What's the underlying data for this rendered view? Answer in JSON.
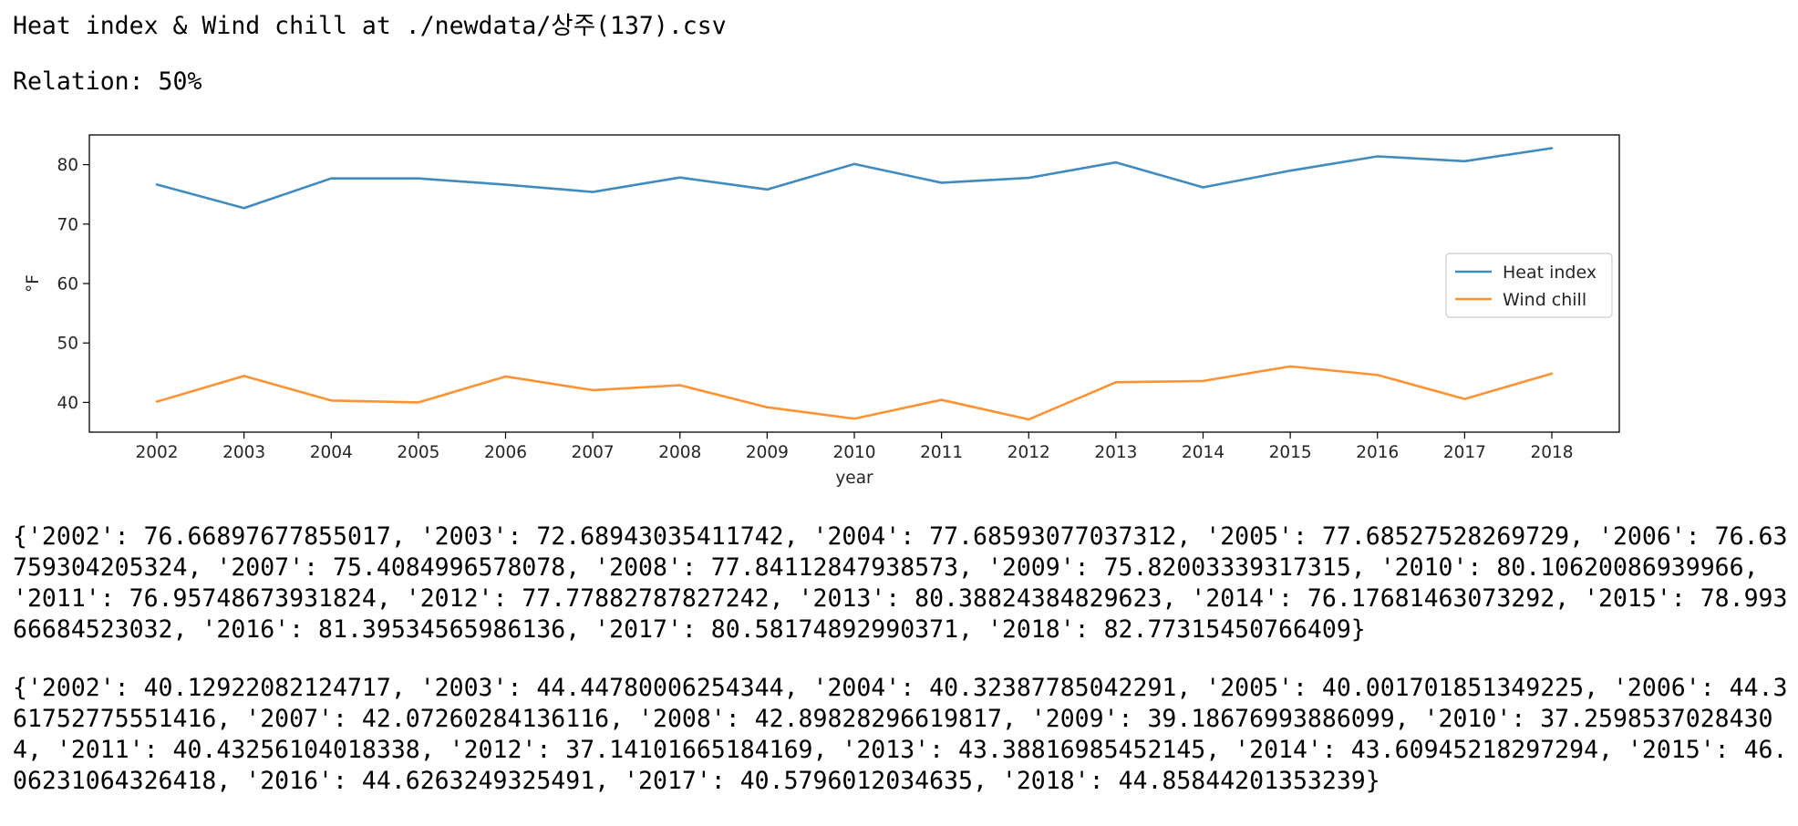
{
  "header": {
    "title": "Heat index & Wind chill at ./newdata/상주(137).csv",
    "relation": "Relation: 50%"
  },
  "chart_data": {
    "type": "line",
    "categories": [
      "2002",
      "2003",
      "2004",
      "2005",
      "2006",
      "2007",
      "2008",
      "2009",
      "2010",
      "2011",
      "2012",
      "2013",
      "2014",
      "2015",
      "2016",
      "2017",
      "2018"
    ],
    "series": [
      {
        "name": "Heat index",
        "color": "#1f77b4",
        "values": [
          76.66897677855017,
          72.68943035411742,
          77.68593077037312,
          77.68527528269729,
          76.63759304205324,
          75.4084996578078,
          77.84112847938573,
          75.82003339317315,
          80.10620086939966,
          76.95748673931824,
          77.77882787827242,
          80.38824384829623,
          76.17681463073292,
          78.99366684523032,
          81.39534565986136,
          80.58174892990371,
          82.77315450766409
        ]
      },
      {
        "name": "Wind chill",
        "color": "#ff7f0e",
        "values": [
          40.12922082124717,
          44.44780006254344,
          40.32387785042291,
          40.001701851349225,
          44.361752775551416,
          42.07260284136116,
          42.89828296619817,
          39.18676993886099,
          37.25985370284304,
          40.43256104018338,
          37.14101665184169,
          43.38816985452145,
          43.60945218297294,
          46.06231064326418,
          44.6263249325491,
          40.5796012034635,
          44.85844201353239
        ]
      }
    ],
    "xlabel": "year",
    "ylabel": "°F",
    "yticks": [
      "40",
      "50",
      "60",
      "70",
      "80"
    ],
    "ylim": [
      35,
      85
    ],
    "grid": false,
    "legend": "center-right"
  },
  "output": {
    "heat_dict": "{'2002': 76.66897677855017, '2003': 72.68943035411742, '2004': 77.68593077037312, '2005': 77.68527528269729, '2006': 76.63759304205324, '2007': 75.4084996578078, '2008': 77.84112847938573, '2009': 75.82003339317315, '2010': 80.10620086939966, '2011': 76.95748673931824, '2012': 77.77882787827242, '2013': 80.38824384829623, '2014': 76.17681463073292, '2015': 78.99366684523032, '2016': 81.39534565986136, '2017': 80.58174892990371, '2018': 82.77315450766409}",
    "wind_dict": "{'2002': 40.12922082124717, '2003': 44.44780006254344, '2004': 40.32387785042291, '2005': 40.001701851349225, '2006': 44.361752775551416, '2007': 42.07260284136116, '2008': 42.89828296619817, '2009': 39.18676993886099, '2010': 37.25985370284304, '2011': 40.43256104018338, '2012': 37.14101665184169, '2013': 43.38816985452145, '2014': 43.60945218297294, '2015': 46.06231064326418, '2016': 44.6263249325491, '2017': 40.5796012034635, '2018': 44.85844201353239}"
  }
}
